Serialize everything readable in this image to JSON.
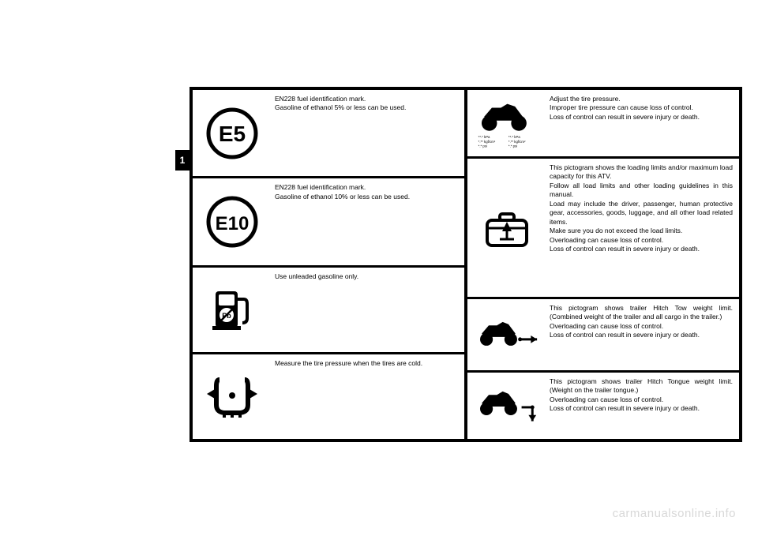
{
  "tab_label": "1",
  "watermark": "carmanualsonline.info",
  "left": [
    {
      "icon": "e5",
      "text": "EN228 fuel identification mark.\nGasoline of ethanol 5% or less can be used."
    },
    {
      "icon": "e10",
      "text": "EN228 fuel identification mark.\nGasoline of ethanol 10% or less can be used."
    },
    {
      "icon": "pump",
      "text": "Use unleaded gasoline only."
    },
    {
      "icon": "tire",
      "text": "Measure the tire pressure when the tires are cold."
    }
  ],
  "right": [
    {
      "icon": "atv_pressure",
      "text": "Adjust the tire pressure.\nImproper tire pressure can cause loss of control.\nLoss of control can result in severe injury or death."
    },
    {
      "icon": "loading",
      "text": "This pictogram shows the loading limits and/or maximum load capacity for this ATV.\nFollow all load limits and other loading guidelines in this manual.\nLoad may include the driver, passenger, human protective gear, accessories, goods, luggage, and all other load related items.\nMake sure you do not exceed the load limits.\nOverloading can cause loss of control.\nLoss of control can result in severe injury or death."
    },
    {
      "icon": "hitch_tow",
      "text": "This pictogram shows trailer Hitch Tow weight limit. (Combined weight of the trailer and all cargo in the trailer.)\nOverloading can cause loss of control.\nLoss of control can result in severe injury or death."
    },
    {
      "icon": "hitch_tongue",
      "text": "This pictogram shows trailer Hitch Tongue weight limit. (Weight on the trailer tongue.)\nOverloading can cause loss of control.\nLoss of control can result in severe injury or death."
    }
  ],
  "icons": {
    "e5_label": "E5",
    "e10_label": "E10",
    "pressure_labels": {
      "l1a": "**.* kPa",
      "l1b": "**.* kPa",
      "l2a": "*.** kgf/cm²",
      "l2b": "*.** kgf/cm²",
      "l3a": "*.* psi",
      "l3b": "*.* psi"
    }
  },
  "style": {
    "bg": "#ffffff",
    "box_bg": "#000000",
    "cell_bg": "#ffffff",
    "text_color": "#000000",
    "font_size_pt": 8.5,
    "watermark_color": "#d8d8d8",
    "circle_stroke": "#000000",
    "circle_stroke_width": 4
  },
  "left_heights": [
    111,
    111,
    108,
    109
  ],
  "right_heights": [
    84,
    175,
    90,
    84
  ]
}
